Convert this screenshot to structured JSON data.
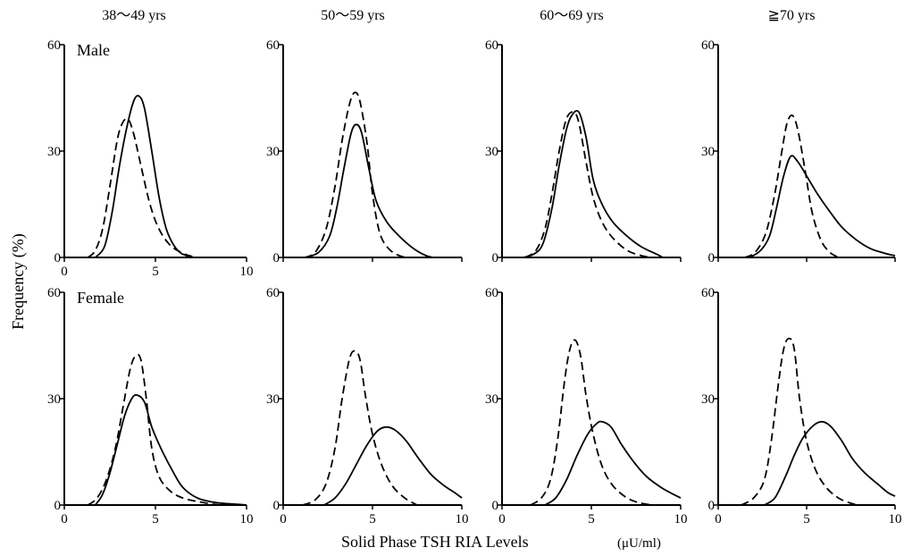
{
  "figure": {
    "xlabel": "Solid Phase TSH RIA Levels",
    "xunit": "(μU/ml)",
    "ylabel": "Frequency (%)",
    "column_titles": [
      "38～49 yrs",
      "50～59 yrs",
      "60～69 yrs",
      "≧70 yrs"
    ],
    "row_labels": [
      "Male",
      "Female"
    ]
  },
  "chart_data": [
    {
      "type": "line",
      "row": "Male",
      "column": "38～49 yrs",
      "xlim": [
        0,
        10
      ],
      "ylim": [
        0,
        60
      ],
      "xticks": [
        "0",
        "5",
        "10"
      ],
      "yticks": [
        "0",
        "30",
        "60"
      ],
      "series": [
        {
          "style": "solid",
          "points": [
            [
              1.7,
              0
            ],
            [
              2.2,
              3
            ],
            [
              2.6,
              12
            ],
            [
              3.0,
              25
            ],
            [
              3.4,
              36
            ],
            [
              3.8,
              44
            ],
            [
              4.1,
              45.5
            ],
            [
              4.4,
              42
            ],
            [
              4.8,
              30
            ],
            [
              5.2,
              17
            ],
            [
              5.6,
              8
            ],
            [
              6.0,
              3.5
            ],
            [
              6.4,
              1.2
            ],
            [
              7.0,
              0
            ]
          ]
        },
        {
          "style": "dashed",
          "points": [
            [
              1.3,
              0
            ],
            [
              1.7,
              2
            ],
            [
              2.1,
              8
            ],
            [
              2.5,
              20
            ],
            [
              2.9,
              33
            ],
            [
              3.2,
              38
            ],
            [
              3.5,
              39
            ],
            [
              3.8,
              35
            ],
            [
              4.2,
              26
            ],
            [
              4.7,
              15
            ],
            [
              5.2,
              8
            ],
            [
              5.8,
              3.5
            ],
            [
              6.5,
              1.2
            ],
            [
              7.2,
              0
            ]
          ]
        }
      ]
    },
    {
      "type": "line",
      "row": "Male",
      "column": "50～59 yrs",
      "xlim": [
        0,
        10
      ],
      "ylim": [
        0,
        60
      ],
      "xticks": [],
      "yticks": [
        "0",
        "30",
        "60"
      ],
      "series": [
        {
          "style": "solid",
          "points": [
            [
              1.3,
              0
            ],
            [
              2.0,
              1.5
            ],
            [
              2.6,
              6
            ],
            [
              3.0,
              14
            ],
            [
              3.4,
              25
            ],
            [
              3.8,
              35
            ],
            [
              4.1,
              37.5
            ],
            [
              4.4,
              35
            ],
            [
              4.8,
              25
            ],
            [
              5.2,
              16
            ],
            [
              5.8,
              10
            ],
            [
              6.5,
              6
            ],
            [
              7.3,
              2.5
            ],
            [
              8.0,
              0.5
            ],
            [
              8.4,
              0
            ]
          ]
        },
        {
          "style": "dashed",
          "points": [
            [
              1.2,
              0
            ],
            [
              1.8,
              1.5
            ],
            [
              2.4,
              8
            ],
            [
              2.9,
              20
            ],
            [
              3.3,
              33
            ],
            [
              3.7,
              43
            ],
            [
              4.0,
              46.5
            ],
            [
              4.3,
              44
            ],
            [
              4.7,
              32
            ],
            [
              5.0,
              18
            ],
            [
              5.4,
              7
            ],
            [
              5.9,
              2.5
            ],
            [
              6.5,
              0.5
            ],
            [
              7.0,
              0
            ]
          ]
        }
      ]
    },
    {
      "type": "line",
      "row": "Male",
      "column": "60～69 yrs",
      "xlim": [
        0,
        10
      ],
      "ylim": [
        0,
        60
      ],
      "xticks": [],
      "yticks": [
        "0",
        "30",
        "60"
      ],
      "series": [
        {
          "style": "solid",
          "points": [
            [
              1.2,
              0
            ],
            [
              1.8,
              1
            ],
            [
              2.3,
              4
            ],
            [
              2.8,
              14
            ],
            [
              3.2,
              26
            ],
            [
              3.6,
              36
            ],
            [
              3.9,
              40
            ],
            [
              4.3,
              41
            ],
            [
              4.7,
              34
            ],
            [
              5.1,
              22
            ],
            [
              5.6,
              15
            ],
            [
              6.2,
              10
            ],
            [
              7.0,
              6
            ],
            [
              7.8,
              3
            ],
            [
              8.7,
              0.8
            ],
            [
              9.0,
              0
            ]
          ]
        },
        {
          "style": "dashed",
          "points": [
            [
              1.3,
              0
            ],
            [
              1.9,
              2
            ],
            [
              2.4,
              8
            ],
            [
              2.8,
              18
            ],
            [
              3.2,
              30
            ],
            [
              3.6,
              39
            ],
            [
              4.0,
              41
            ],
            [
              4.3,
              38
            ],
            [
              4.7,
              27
            ],
            [
              5.1,
              17
            ],
            [
              5.6,
              10
            ],
            [
              6.2,
              5.5
            ],
            [
              7.0,
              2
            ],
            [
              7.8,
              0.5
            ],
            [
              8.4,
              0
            ]
          ]
        }
      ]
    },
    {
      "type": "line",
      "row": "Male",
      "column": "≧70 yrs",
      "xlim": [
        0,
        10
      ],
      "ylim": [
        0,
        60
      ],
      "xticks": [],
      "yticks": [
        "0",
        "30",
        "60"
      ],
      "series": [
        {
          "style": "solid",
          "points": [
            [
              1.8,
              0
            ],
            [
              2.4,
              2
            ],
            [
              2.9,
              6
            ],
            [
              3.3,
              14
            ],
            [
              3.7,
              23
            ],
            [
              4.1,
              28.5
            ],
            [
              4.5,
              27
            ],
            [
              5.0,
              23
            ],
            [
              5.6,
              18
            ],
            [
              6.3,
              13
            ],
            [
              7.0,
              8.5
            ],
            [
              7.8,
              5
            ],
            [
              8.6,
              2.5
            ],
            [
              9.4,
              1.2
            ],
            [
              10.0,
              0.5
            ]
          ]
        },
        {
          "style": "dashed",
          "points": [
            [
              1.5,
              0
            ],
            [
              2.1,
              1.5
            ],
            [
              2.7,
              7
            ],
            [
              3.2,
              18
            ],
            [
              3.6,
              30
            ],
            [
              3.9,
              38
            ],
            [
              4.2,
              40
            ],
            [
              4.5,
              36
            ],
            [
              4.9,
              25
            ],
            [
              5.3,
              13
            ],
            [
              5.8,
              5
            ],
            [
              6.3,
              1.5
            ],
            [
              6.8,
              0
            ]
          ]
        }
      ]
    },
    {
      "type": "line",
      "row": "Female",
      "column": "38～49 yrs",
      "xlim": [
        0,
        10
      ],
      "ylim": [
        0,
        60
      ],
      "xticks": [
        "0",
        "5",
        "10"
      ],
      "yticks": [
        "0",
        "30",
        "60"
      ],
      "series": [
        {
          "style": "solid",
          "points": [
            [
              1.7,
              0
            ],
            [
              2.1,
              3
            ],
            [
              2.5,
              9
            ],
            [
              2.9,
              17
            ],
            [
              3.3,
              25
            ],
            [
              3.7,
              30
            ],
            [
              4.0,
              31
            ],
            [
              4.4,
              29
            ],
            [
              4.8,
              22
            ],
            [
              5.3,
              16
            ],
            [
              5.9,
              10
            ],
            [
              6.5,
              5
            ],
            [
              7.3,
              2
            ],
            [
              8.3,
              0.7
            ],
            [
              9.5,
              0.2
            ],
            [
              10.0,
              0
            ]
          ]
        },
        {
          "style": "dashed",
          "points": [
            [
              1.3,
              0
            ],
            [
              1.8,
              2
            ],
            [
              2.3,
              7
            ],
            [
              2.8,
              16
            ],
            [
              3.2,
              27
            ],
            [
              3.6,
              38
            ],
            [
              3.9,
              42
            ],
            [
              4.2,
              41
            ],
            [
              4.5,
              30
            ],
            [
              4.8,
              16
            ],
            [
              5.2,
              8
            ],
            [
              5.8,
              4
            ],
            [
              6.5,
              2
            ],
            [
              7.5,
              0.8
            ],
            [
              8.5,
              0
            ]
          ]
        }
      ]
    },
    {
      "type": "line",
      "row": "Female",
      "column": "50～59 yrs",
      "xlim": [
        0,
        10
      ],
      "ylim": [
        0,
        60
      ],
      "xticks": [
        "0",
        "5",
        "10"
      ],
      "yticks": [
        "0",
        "30",
        "60"
      ],
      "series": [
        {
          "style": "solid",
          "points": [
            [
              2.3,
              0
            ],
            [
              2.9,
              2
            ],
            [
              3.5,
              6
            ],
            [
              4.1,
              11.5
            ],
            [
              4.7,
              17
            ],
            [
              5.3,
              21
            ],
            [
              5.8,
              22
            ],
            [
              6.3,
              21
            ],
            [
              6.9,
              18
            ],
            [
              7.6,
              13
            ],
            [
              8.3,
              8.5
            ],
            [
              9.0,
              5.5
            ],
            [
              9.6,
              3.5
            ],
            [
              10.0,
              2
            ]
          ]
        },
        {
          "style": "dashed",
          "points": [
            [
              1.1,
              0
            ],
            [
              1.8,
              1.5
            ],
            [
              2.4,
              6
            ],
            [
              2.9,
              16
            ],
            [
              3.3,
              30
            ],
            [
              3.7,
              41
            ],
            [
              4.0,
              43.5
            ],
            [
              4.3,
              41
            ],
            [
              4.6,
              31
            ],
            [
              5.0,
              20
            ],
            [
              5.5,
              11.5
            ],
            [
              6.1,
              5.5
            ],
            [
              6.8,
              2
            ],
            [
              7.5,
              0
            ]
          ]
        }
      ]
    },
    {
      "type": "line",
      "row": "Female",
      "column": "60～69 yrs",
      "xlim": [
        0,
        10
      ],
      "ylim": [
        0,
        60
      ],
      "xticks": [
        "0",
        "5",
        "10"
      ],
      "yticks": [
        "0",
        "30",
        "60"
      ],
      "series": [
        {
          "style": "solid",
          "points": [
            [
              2.4,
              0
            ],
            [
              3.0,
              2
            ],
            [
              3.6,
              7
            ],
            [
              4.2,
              14
            ],
            [
              4.8,
              20
            ],
            [
              5.3,
              23
            ],
            [
              5.6,
              23.5
            ],
            [
              6.1,
              22
            ],
            [
              6.7,
              17
            ],
            [
              7.4,
              12
            ],
            [
              8.1,
              8
            ],
            [
              8.9,
              5
            ],
            [
              9.6,
              3
            ],
            [
              10.0,
              2
            ]
          ]
        },
        {
          "style": "dashed",
          "points": [
            [
              1.6,
              0
            ],
            [
              2.2,
              2
            ],
            [
              2.7,
              7
            ],
            [
              3.1,
              18
            ],
            [
              3.5,
              35
            ],
            [
              3.8,
              44
            ],
            [
              4.1,
              46.5
            ],
            [
              4.4,
              42
            ],
            [
              4.7,
              31
            ],
            [
              5.1,
              20
            ],
            [
              5.6,
              11
            ],
            [
              6.2,
              5.5
            ],
            [
              7.0,
              2
            ],
            [
              7.8,
              0.5
            ],
            [
              8.5,
              0
            ]
          ]
        }
      ]
    },
    {
      "type": "line",
      "row": "Female",
      "column": "≧70 yrs",
      "xlim": [
        0,
        10
      ],
      "ylim": [
        0,
        60
      ],
      "xticks": [
        "0",
        "5",
        "10"
      ],
      "yticks": [
        "0",
        "30",
        "60"
      ],
      "series": [
        {
          "style": "solid",
          "points": [
            [
              2.6,
              0
            ],
            [
              3.2,
              2
            ],
            [
              3.8,
              8
            ],
            [
              4.3,
              14
            ],
            [
              4.8,
              19
            ],
            [
              5.4,
              22.5
            ],
            [
              5.9,
              23.5
            ],
            [
              6.4,
              22
            ],
            [
              7.0,
              18
            ],
            [
              7.6,
              13
            ],
            [
              8.3,
              9
            ],
            [
              9.0,
              6
            ],
            [
              9.6,
              3.5
            ],
            [
              10.0,
              2.5
            ]
          ]
        },
        {
          "style": "dashed",
          "points": [
            [
              1.3,
              0
            ],
            [
              2.0,
              2
            ],
            [
              2.6,
              7
            ],
            [
              3.0,
              18
            ],
            [
              3.4,
              34
            ],
            [
              3.7,
              44
            ],
            [
              4.0,
              47
            ],
            [
              4.3,
              44
            ],
            [
              4.6,
              30
            ],
            [
              5.0,
              18
            ],
            [
              5.5,
              10
            ],
            [
              6.1,
              5
            ],
            [
              6.8,
              2
            ],
            [
              7.5,
              0.5
            ],
            [
              8.0,
              0
            ]
          ]
        }
      ]
    }
  ]
}
